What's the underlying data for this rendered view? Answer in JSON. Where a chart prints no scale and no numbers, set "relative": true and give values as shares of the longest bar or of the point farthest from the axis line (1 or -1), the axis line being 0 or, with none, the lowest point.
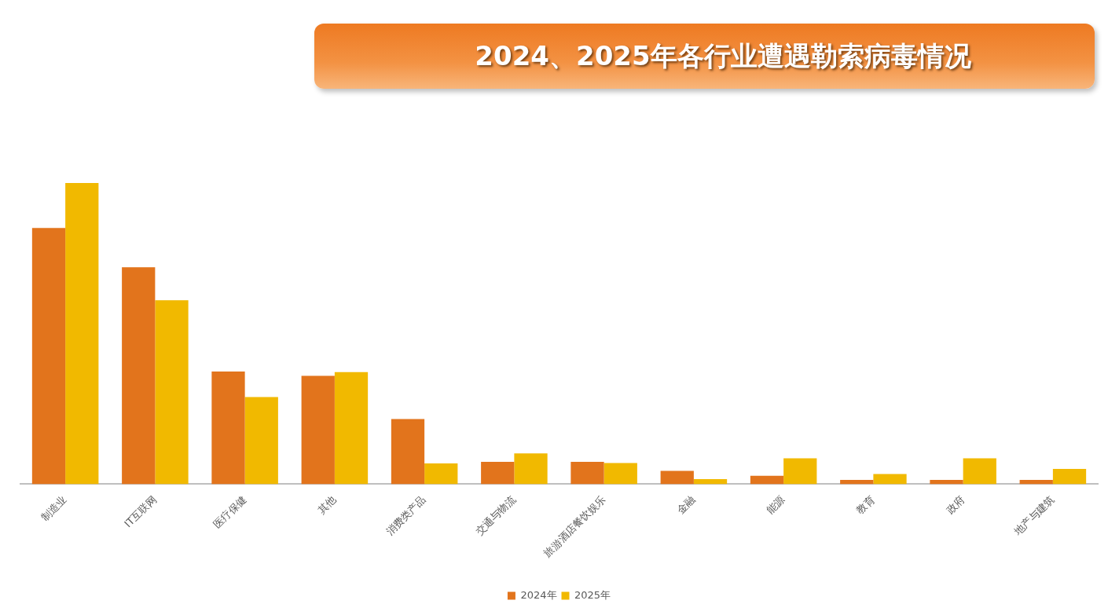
{
  "chart_data": {
    "type": "bar",
    "title": "2024、2025年各行业遭遇勒索病毒情况",
    "categories": [
      "制造业",
      "IT互联网",
      "医疗保健",
      "其他",
      "消费类产品",
      "交通与物流",
      "旅游酒店餐饮娱乐",
      "金融",
      "能源",
      "教育",
      "政府",
      "地产与建筑"
    ],
    "series": [
      {
        "name": "2024年",
        "color": "#e2741c",
        "values": [
          0.851,
          0.72,
          0.374,
          0.36,
          0.216,
          0.074,
          0.074,
          0.044,
          0.028,
          0.014,
          0.014,
          0.014
        ]
      },
      {
        "name": "2025年",
        "color": "#f1b900",
        "values": [
          1,
          0.611,
          0.289,
          0.372,
          0.069,
          0.102,
          0.07,
          0.017,
          0.086,
          0.034,
          0.086,
          0.051
        ]
      }
    ],
    "relative": true,
    "legend": "bottom"
  }
}
